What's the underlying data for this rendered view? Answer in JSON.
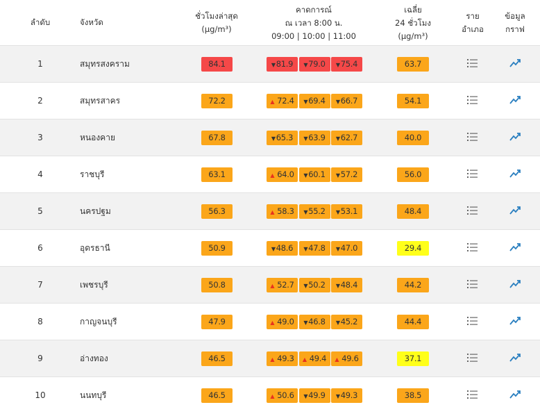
{
  "header": {
    "rank": [
      "ลำดับ"
    ],
    "province": [
      "จังหวัด"
    ],
    "latest": [
      "ชั่วโมงล่าสุด",
      "(µg/m³)"
    ],
    "forecast": [
      "คาดการณ์",
      "ณ เวลา 8:00 น.",
      "09:00 | 10:00 | 11:00"
    ],
    "average": [
      "เฉลี่ย",
      "24 ชั่วโมง",
      "(µg/m³)"
    ],
    "district": [
      "ราย",
      "อำเภอ"
    ],
    "graph": [
      "ข้อมูล",
      "กราฟ"
    ]
  },
  "colors": {
    "red": "#f54848",
    "orange": "#fba61a",
    "yellow": "#ffff1a",
    "up": "#e8321e",
    "down": "#333333"
  },
  "table": {
    "rows": [
      {
        "rank": "1",
        "province": "สมุทรสงคราม",
        "latest": {
          "text": "84.1",
          "level": "red"
        },
        "forecast": [
          {
            "arrow": "▼",
            "text": "81.9",
            "level": "red"
          },
          {
            "arrow": "▼",
            "text": "79.0",
            "level": "red"
          },
          {
            "arrow": "▼",
            "text": "75.4",
            "level": "red"
          }
        ],
        "average": {
          "text": "63.7",
          "level": "orange"
        }
      },
      {
        "rank": "2",
        "province": "สมุทรสาคร",
        "latest": {
          "text": "72.2",
          "level": "orange"
        },
        "forecast": [
          {
            "arrow": "▲",
            "text": "72.4",
            "level": "orange"
          },
          {
            "arrow": "▼",
            "text": "69.4",
            "level": "orange"
          },
          {
            "arrow": "▼",
            "text": "66.7",
            "level": "orange"
          }
        ],
        "average": {
          "text": "54.1",
          "level": "orange"
        }
      },
      {
        "rank": "3",
        "province": "หนองคาย",
        "latest": {
          "text": "67.8",
          "level": "orange"
        },
        "forecast": [
          {
            "arrow": "▼",
            "text": "65.3",
            "level": "orange"
          },
          {
            "arrow": "▼",
            "text": "63.9",
            "level": "orange"
          },
          {
            "arrow": "▼",
            "text": "62.7",
            "level": "orange"
          }
        ],
        "average": {
          "text": "40.0",
          "level": "orange"
        }
      },
      {
        "rank": "4",
        "province": "ราชบุรี",
        "latest": {
          "text": "63.1",
          "level": "orange"
        },
        "forecast": [
          {
            "arrow": "▲",
            "text": "64.0",
            "level": "orange"
          },
          {
            "arrow": "▼",
            "text": "60.1",
            "level": "orange"
          },
          {
            "arrow": "▼",
            "text": "57.2",
            "level": "orange"
          }
        ],
        "average": {
          "text": "56.0",
          "level": "orange"
        }
      },
      {
        "rank": "5",
        "province": "นครปฐม",
        "latest": {
          "text": "56.3",
          "level": "orange"
        },
        "forecast": [
          {
            "arrow": "▲",
            "text": "58.3",
            "level": "orange"
          },
          {
            "arrow": "▼",
            "text": "55.2",
            "level": "orange"
          },
          {
            "arrow": "▼",
            "text": "53.1",
            "level": "orange"
          }
        ],
        "average": {
          "text": "48.4",
          "level": "orange"
        }
      },
      {
        "rank": "6",
        "province": "อุดรธานี",
        "latest": {
          "text": "50.9",
          "level": "orange"
        },
        "forecast": [
          {
            "arrow": "▼",
            "text": "48.6",
            "level": "orange"
          },
          {
            "arrow": "▼",
            "text": "47.8",
            "level": "orange"
          },
          {
            "arrow": "▼",
            "text": "47.0",
            "level": "orange"
          }
        ],
        "average": {
          "text": "29.4",
          "level": "yellow"
        }
      },
      {
        "rank": "7",
        "province": "เพชรบุรี",
        "latest": {
          "text": "50.8",
          "level": "orange"
        },
        "forecast": [
          {
            "arrow": "▲",
            "text": "52.7",
            "level": "orange"
          },
          {
            "arrow": "▼",
            "text": "50.2",
            "level": "orange"
          },
          {
            "arrow": "▼",
            "text": "48.4",
            "level": "orange"
          }
        ],
        "average": {
          "text": "44.2",
          "level": "orange"
        }
      },
      {
        "rank": "8",
        "province": "กาญจนบุรี",
        "latest": {
          "text": "47.9",
          "level": "orange"
        },
        "forecast": [
          {
            "arrow": "▲",
            "text": "49.0",
            "level": "orange"
          },
          {
            "arrow": "▼",
            "text": "46.8",
            "level": "orange"
          },
          {
            "arrow": "▼",
            "text": "45.2",
            "level": "orange"
          }
        ],
        "average": {
          "text": "44.4",
          "level": "orange"
        }
      },
      {
        "rank": "9",
        "province": "อ่างทอง",
        "latest": {
          "text": "46.5",
          "level": "orange"
        },
        "forecast": [
          {
            "arrow": "▲",
            "text": "49.3",
            "level": "orange"
          },
          {
            "arrow": "▲",
            "text": "49.4",
            "level": "orange"
          },
          {
            "arrow": "▲",
            "text": "49.6",
            "level": "orange"
          }
        ],
        "average": {
          "text": "37.1",
          "level": "yellow"
        }
      },
      {
        "rank": "10",
        "province": "นนทบุรี",
        "latest": {
          "text": "46.5",
          "level": "orange"
        },
        "forecast": [
          {
            "arrow": "▲",
            "text": "50.6",
            "level": "orange"
          },
          {
            "arrow": "▼",
            "text": "49.9",
            "level": "orange"
          },
          {
            "arrow": "▼",
            "text": "49.3",
            "level": "orange"
          }
        ],
        "average": {
          "text": "38.5",
          "level": "orange"
        }
      }
    ]
  }
}
